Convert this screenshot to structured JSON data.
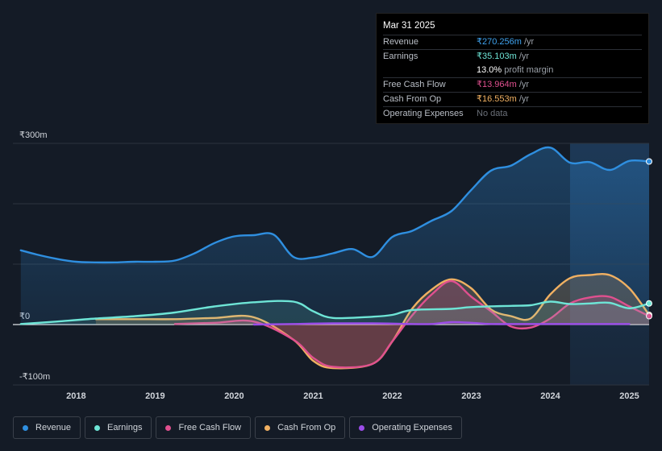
{
  "tooltip": {
    "date": "Mar 31 2025",
    "rows": [
      {
        "label": "Revenue",
        "value": "₹270.256m",
        "unit": "/yr",
        "color": "#3fa3f0"
      },
      {
        "label": "Earnings",
        "value": "₹35.103m",
        "unit": "/yr",
        "color": "#6ee5d6"
      },
      {
        "label": "",
        "value": "13.0%",
        "unit": "profit margin",
        "color": "#ffffff"
      },
      {
        "label": "Free Cash Flow",
        "value": "₹13.964m",
        "unit": "/yr",
        "color": "#e0508f"
      },
      {
        "label": "Cash From Op",
        "value": "₹16.553m",
        "unit": "/yr",
        "color": "#f0b062"
      },
      {
        "label": "Operating Expenses",
        "value": "No data",
        "unit": "",
        "color": "#6b7079"
      }
    ]
  },
  "legend": [
    {
      "label": "Revenue",
      "color": "#2f8fe0"
    },
    {
      "label": "Earnings",
      "color": "#6ee5d6"
    },
    {
      "label": "Free Cash Flow",
      "color": "#e0508f"
    },
    {
      "label": "Cash From Op",
      "color": "#f0b062"
    },
    {
      "label": "Operating Expenses",
      "color": "#9b4de8"
    }
  ],
  "chart_data": {
    "type": "area",
    "y_unit": "₹m",
    "ylim": [
      -100,
      300
    ],
    "y_tick_labels": [
      {
        "v": 300,
        "t": "₹300m"
      },
      {
        "v": 0,
        "t": "₹0"
      },
      {
        "v": -100,
        "t": "-₹100m"
      }
    ],
    "x_range": [
      2017.2,
      2025.25
    ],
    "x_tick_labels": [
      "2018",
      "2019",
      "2020",
      "2021",
      "2022",
      "2023",
      "2024",
      "2025"
    ],
    "highlight_from": 2024.25,
    "series": [
      {
        "name": "Revenue",
        "color": "#2f8fe0",
        "x": [
          2017.3,
          2017.5,
          2017.75,
          2018.0,
          2018.25,
          2018.5,
          2018.75,
          2019.0,
          2019.25,
          2019.5,
          2019.75,
          2020.0,
          2020.25,
          2020.5,
          2020.75,
          2021.0,
          2021.25,
          2021.5,
          2021.75,
          2022.0,
          2022.25,
          2022.5,
          2022.75,
          2023.0,
          2023.25,
          2023.5,
          2023.75,
          2024.0,
          2024.25,
          2024.5,
          2024.75,
          2025.0,
          2025.25
        ],
        "values": [
          123,
          116,
          109,
          104,
          103,
          103,
          104,
          104,
          106,
          118,
          135,
          146,
          148,
          149,
          112,
          111,
          118,
          125,
          112,
          145,
          155,
          172,
          188,
          223,
          255,
          263,
          282,
          293,
          268,
          269,
          256,
          271,
          270
        ]
      },
      {
        "name": "Earnings",
        "color": "#6ee5d6",
        "x": [
          2017.3,
          2017.75,
          2018.25,
          2018.75,
          2019.25,
          2019.75,
          2020.25,
          2020.75,
          2021.0,
          2021.25,
          2021.75,
          2022.0,
          2022.25,
          2022.75,
          2023.0,
          2023.5,
          2023.75,
          2024.0,
          2024.25,
          2024.5,
          2024.75,
          2025.0,
          2025.25
        ],
        "values": [
          1,
          5,
          10,
          14,
          20,
          30,
          37,
          38,
          22,
          11,
          13,
          16,
          24,
          26,
          29,
          31,
          32,
          38,
          34,
          35,
          36,
          27,
          35
        ]
      },
      {
        "name": "Free Cash Flow",
        "color": "#e0508f",
        "x": [
          2019.25,
          2019.75,
          2020.25,
          2020.75,
          2021.0,
          2021.25,
          2021.75,
          2022.0,
          2022.25,
          2022.5,
          2022.75,
          2023.0,
          2023.25,
          2023.5,
          2023.75,
          2024.0,
          2024.25,
          2024.5,
          2024.75,
          2025.0,
          2025.25
        ],
        "values": [
          1,
          3,
          5,
          -25,
          -55,
          -70,
          -65,
          -28,
          15,
          50,
          72,
          46,
          22,
          -3,
          -5,
          10,
          35,
          45,
          46,
          30,
          14
        ]
      },
      {
        "name": "Cash From Op",
        "color": "#f0b062",
        "x": [
          2018.25,
          2018.75,
          2019.25,
          2019.75,
          2020.25,
          2020.75,
          2021.0,
          2021.25,
          2021.75,
          2022.0,
          2022.25,
          2022.5,
          2022.75,
          2023.0,
          2023.25,
          2023.5,
          2023.75,
          2024.0,
          2024.25,
          2024.5,
          2024.75,
          2025.0,
          2025.25
        ],
        "values": [
          9,
          9,
          9,
          11,
          12,
          -25,
          -60,
          -72,
          -65,
          -28,
          26,
          58,
          75,
          60,
          25,
          14,
          10,
          50,
          77,
          82,
          82,
          60,
          16
        ]
      },
      {
        "name": "Operating Expenses",
        "color": "#9b4de8",
        "x": [
          2020.25,
          2020.75,
          2021.25,
          2021.75,
          2022.25,
          2022.5,
          2022.75,
          2023.0,
          2023.25,
          2023.75,
          2024.25,
          2024.75,
          2025.0
        ],
        "values": [
          0,
          1,
          2,
          2,
          1,
          1,
          4,
          3,
          1,
          1,
          1,
          1,
          1
        ]
      }
    ]
  }
}
